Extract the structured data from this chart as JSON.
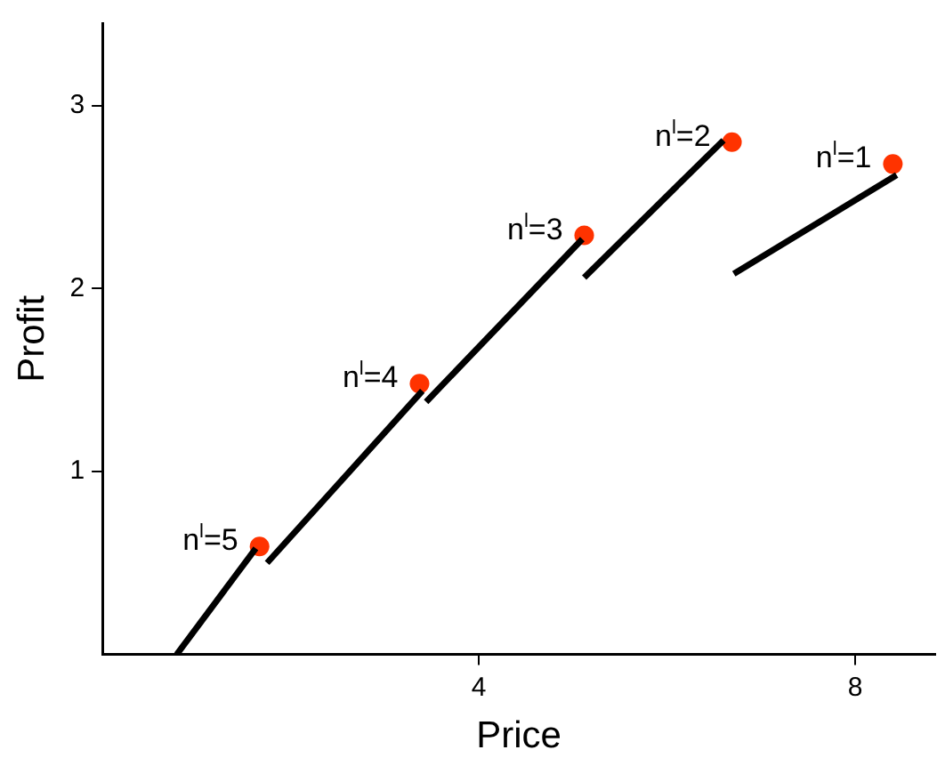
{
  "chart_data": {
    "type": "line",
    "xlabel": "Price",
    "ylabel": "Profit",
    "xlim": [
      0,
      8.85
    ],
    "ylim": [
      0,
      3.45
    ],
    "xticks": [
      4,
      8
    ],
    "yticks": [
      1,
      2,
      3
    ],
    "grid": false,
    "legend": false,
    "marker": "none",
    "line_style": "solid",
    "series": [
      {
        "type": "line",
        "color": "#000000",
        "x": [
          0.79,
          1.63
        ],
        "values": [
          0,
          0.58
        ]
      },
      {
        "type": "line",
        "color": "#000000",
        "x": [
          1.75,
          3.4
        ],
        "values": [
          0.5,
          1.44
        ]
      },
      {
        "type": "line",
        "color": "#000000",
        "x": [
          3.44,
          5.1
        ],
        "values": [
          1.38,
          2.27
        ]
      },
      {
        "type": "line",
        "color": "#000000",
        "x": [
          5.12,
          6.6
        ],
        "values": [
          2.06,
          2.81
        ]
      },
      {
        "type": "line",
        "color": "#000000",
        "x": [
          6.71,
          8.44
        ],
        "values": [
          2.08,
          2.62
        ]
      },
      {
        "type": "scatter",
        "color": "#ff3300",
        "marker": "circle",
        "x": [
          1.67,
          3.37,
          5.12,
          6.69,
          8.4
        ],
        "values": [
          0.59,
          1.48,
          2.29,
          2.8,
          2.68
        ]
      }
    ],
    "annotations": [
      {
        "text": "n$^{l}$=5",
        "x": 1.67,
        "y": 0.59
      },
      {
        "text": "n$^{l}$=4",
        "x": 3.37,
        "y": 1.48
      },
      {
        "text": "n$^{l}$=3",
        "x": 5.12,
        "y": 2.29
      },
      {
        "text": "n$^{l}$=2",
        "x": 6.69,
        "y": 2.8
      },
      {
        "text": "n$^{l}$=1",
        "x": 8.4,
        "y": 2.68
      }
    ]
  }
}
